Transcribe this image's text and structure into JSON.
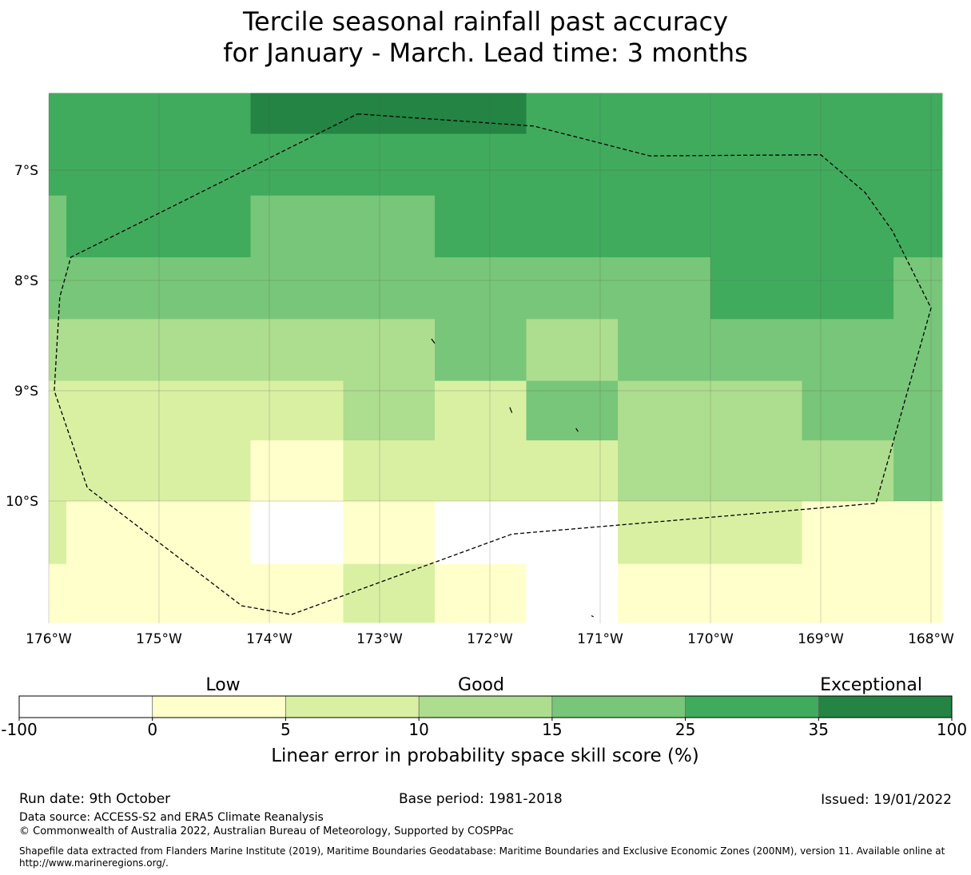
{
  "title": {
    "line1": "Tercile seasonal rainfall past accuracy",
    "line2": "for January - March. Lead time: 3 months"
  },
  "map": {
    "lon_range": [
      -176,
      -167.9
    ],
    "lat_range": [
      -6.3,
      -11.1
    ],
    "lat_ticks": [
      {
        "value": -7,
        "label": "7°S"
      },
      {
        "value": -8,
        "label": "8°S"
      },
      {
        "value": -9,
        "label": "9°S"
      },
      {
        "value": -10,
        "label": "10°S"
      }
    ],
    "lon_ticks": [
      {
        "value": -176,
        "label": "176°W"
      },
      {
        "value": -175,
        "label": "175°W"
      },
      {
        "value": -174,
        "label": "174°W"
      },
      {
        "value": -173,
        "label": "173°W"
      },
      {
        "value": -172,
        "label": "172°W"
      },
      {
        "value": -171,
        "label": "171°W"
      },
      {
        "value": -170,
        "label": "170°W"
      },
      {
        "value": -169,
        "label": "169°W"
      },
      {
        "value": -168,
        "label": "168°W"
      }
    ],
    "col_edges": [
      -176,
      -175.84,
      -174.17,
      -173.33,
      -172.5,
      -171.67,
      -170.84,
      -170.0,
      -169.17,
      -168.34,
      -167.9
    ],
    "row_edges": [
      -6.3,
      -6.67,
      -7.23,
      -7.79,
      -8.35,
      -8.91,
      -9.45,
      -10.0,
      -10.57,
      -11.1
    ],
    "color_classes": [
      "#ffffff",
      "#ffffcc",
      "#d9f0a3",
      "#addd8e",
      "#78c679",
      "#41ab5d",
      "#238443"
    ],
    "grid": [
      [
        5,
        5,
        6,
        6,
        6,
        5,
        5,
        5,
        5,
        5
      ],
      [
        5,
        5,
        5,
        5,
        5,
        5,
        5,
        5,
        5,
        5
      ],
      [
        4,
        5,
        4,
        4,
        5,
        5,
        5,
        5,
        5,
        5
      ],
      [
        4,
        4,
        4,
        4,
        4,
        4,
        4,
        5,
        5,
        4
      ],
      [
        3,
        3,
        3,
        3,
        4,
        3,
        4,
        4,
        4,
        4
      ],
      [
        2,
        2,
        2,
        3,
        2,
        4,
        3,
        3,
        4,
        4
      ],
      [
        2,
        2,
        1,
        2,
        2,
        2,
        3,
        3,
        3,
        4
      ],
      [
        2,
        1,
        0,
        1,
        0,
        0,
        2,
        2,
        1,
        1
      ],
      [
        1,
        1,
        1,
        2,
        1,
        0,
        1,
        1,
        1,
        1
      ]
    ],
    "eez_boundary": [
      [
        -173.2,
        -6.49
      ],
      [
        -171.6,
        -6.6
      ],
      [
        -170.55,
        -6.87
      ],
      [
        -169.0,
        -6.86
      ],
      [
        -168.6,
        -7.2
      ],
      [
        -168.35,
        -7.55
      ],
      [
        -168.0,
        -8.25
      ],
      [
        -168.5,
        -10.02
      ],
      [
        -171.8,
        -10.3
      ],
      [
        -173.8,
        -11.03
      ],
      [
        -174.25,
        -10.95
      ],
      [
        -175.65,
        -9.88
      ],
      [
        -175.95,
        -9.0
      ],
      [
        -175.9,
        -8.15
      ],
      [
        -175.8,
        -7.79
      ],
      [
        -173.2,
        -6.49
      ]
    ],
    "islands": [
      [
        [
          -172.53,
          -8.53
        ],
        [
          -172.5,
          -8.57
        ]
      ],
      [
        [
          -171.82,
          -9.15
        ],
        [
          -171.8,
          -9.2
        ]
      ],
      [
        [
          -171.22,
          -9.34
        ],
        [
          -171.2,
          -9.37
        ]
      ],
      [
        [
          -171.08,
          -11.04
        ],
        [
          -171.06,
          -11.05
        ]
      ]
    ]
  },
  "colorbar": {
    "category_labels": [
      "Low",
      "Good",
      "Exceptional"
    ],
    "tick_labels": [
      "-100",
      "0",
      "5",
      "10",
      "15",
      "25",
      "35",
      "100"
    ],
    "colors": [
      "#ffffff",
      "#ffffcc",
      "#d9f0a3",
      "#addd8e",
      "#78c679",
      "#41ab5d",
      "#238443"
    ],
    "axis_label": "Linear error in probability space skill score (%)"
  },
  "footer": {
    "run_date": "Run date: 9th October",
    "base_period": "Base period: 1981-2018",
    "issued": "Issued: 19/01/2022",
    "data_source": "Data source: ACCESS-S2 and ERA5 Climate Reanalysis",
    "copyright": "© Commonwealth of Australia 2022, Australian Bureau of Meteorology, Supported by COSPPac",
    "shapefile_line1": "Shapefile data extracted from Flanders Marine Institute (2019), Maritime Boundaries Geodatabase: Maritime Boundaries and Exclusive Economic Zones (200NM), version 11. Available online at",
    "shapefile_line2": "http://www.marineregions.org/."
  }
}
